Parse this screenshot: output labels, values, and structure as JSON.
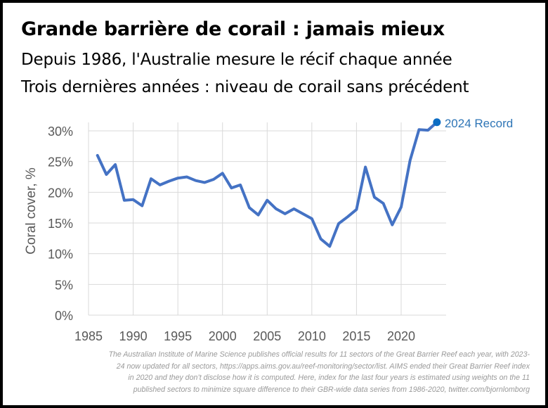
{
  "header": {
    "title": "Grande barrière de corail : jamais mieux",
    "subtitle1": "Depuis 1986, l'Australie mesure le récif chaque année",
    "subtitle2": "Trois dernières années : niveau de corail sans précédent"
  },
  "chart_data": {
    "type": "line",
    "title": "",
    "xlabel": "",
    "ylabel": "Coral cover, %",
    "xlim": [
      1985,
      2025
    ],
    "ylim": [
      0,
      30
    ],
    "x_ticks": [
      "1985",
      "1990",
      "1995",
      "2000",
      "2005",
      "2010",
      "2015",
      "2020"
    ],
    "y_ticks": [
      "0%",
      "5%",
      "10%",
      "15%",
      "20%",
      "25%",
      "30%"
    ],
    "grid": true,
    "line_color": "#4472c4",
    "marker_color": "#0b6cc4",
    "annotation": "2024 Record",
    "series": [
      {
        "name": "Coral cover",
        "x": [
          1986,
          1987,
          1988,
          1989,
          1990,
          1991,
          1992,
          1993,
          1994,
          1995,
          1996,
          1997,
          1998,
          1999,
          2000,
          2001,
          2002,
          2003,
          2004,
          2005,
          2006,
          2007,
          2008,
          2009,
          2010,
          2011,
          2012,
          2013,
          2014,
          2015,
          2016,
          2017,
          2018,
          2019,
          2020,
          2021,
          2022,
          2023,
          2024
        ],
        "values": [
          26.0,
          22.9,
          24.5,
          18.7,
          18.8,
          17.8,
          22.2,
          21.2,
          21.8,
          22.3,
          22.5,
          21.9,
          21.6,
          22.1,
          23.1,
          20.7,
          21.2,
          17.5,
          16.3,
          18.7,
          17.3,
          16.5,
          17.3,
          16.5,
          15.7,
          12.4,
          11.2,
          14.9,
          16.0,
          17.2,
          24.1,
          19.2,
          18.2,
          14.7,
          17.6,
          25.2,
          30.2,
          30.1,
          31.4
        ]
      }
    ]
  },
  "footnote": {
    "line1": "The Australian Institute of Marine Science publishes official results for 11 sectors of the Great Barrier Reef each year, with 2023-",
    "line2": "24 now updated for all sectors, https://apps.aims.gov.au/reef-monitoring/sector/list. AIMS ended their Great Barrier Reef index",
    "line3": "in 2020 and they don’t disclose how it is computed. Here, index for the last four years is estimated using weights on the 11",
    "line4": "published sectors to minimize square difference to their GBR-wide data series from 1986-2020, twitter.com/bjornlomborg"
  }
}
